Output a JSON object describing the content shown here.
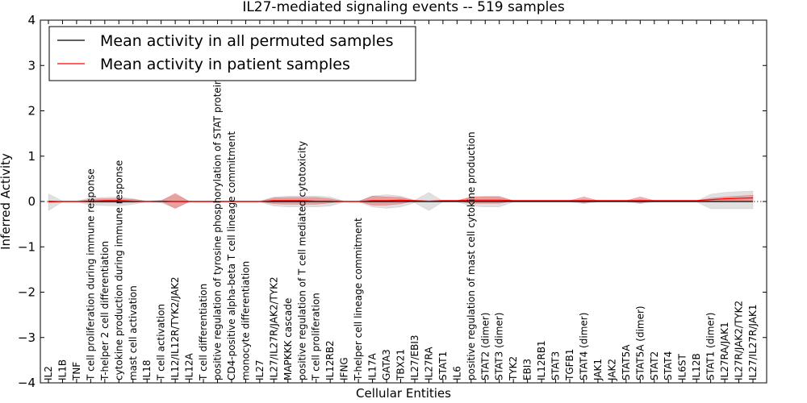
{
  "chart_data": {
    "type": "line",
    "title": "IL27-mediated signaling events -- 519 samples",
    "xlabel": "Cellular Entities",
    "ylabel": "Inferred Activity",
    "ylim": [
      -4,
      4
    ],
    "yticks": [
      {
        "value": 4,
        "label": "4"
      },
      {
        "value": 3,
        "label": "3"
      },
      {
        "value": 2,
        "label": "2"
      },
      {
        "value": 1,
        "label": "1"
      },
      {
        "value": 0,
        "label": "0"
      },
      {
        "value": -1,
        "label": "−1"
      },
      {
        "value": -2,
        "label": "−2"
      },
      {
        "value": -3,
        "label": "−3"
      },
      {
        "value": -4,
        "label": "−4"
      }
    ],
    "categories": [
      "IL2",
      "IL1B",
      "TNF",
      "T cell proliferation during immune response",
      "T-helper 2 cell differentiation",
      "cytokine production during immune response",
      "mast cell activation",
      "IL18",
      "T cell activation",
      "IL12/IL12R/TYK2/JAK2",
      "IL12A",
      "T cell differentiation",
      "positive regulation of tyrosine phosphorylation of STAT protein",
      "CD4-positive alpha-beta T cell lineage commitment",
      "monocyte differentiation",
      "IL27",
      "IL27/IL27R/JAK2/TYK2",
      "MAPKKK cascade",
      "positive regulation of T cell mediated cytotoxicity",
      "T cell proliferation",
      "IL12RB2",
      "IFNG",
      "T-helper cell lineage commitment",
      "IL17A",
      "GATA3",
      "TBX21",
      "IL27/EBI3",
      "IL27RA",
      "STAT1",
      "IL6",
      "positive regulation of mast cell cytokine production",
      "STAT2 (dimer)",
      "STAT3 (dimer)",
      "TYK2",
      "EBI3",
      "IL12RB1",
      "STAT3",
      "TGFB1",
      "STAT4 (dimer)",
      "JAK1",
      "JAK2",
      "STAT5A",
      "STAT5A (dimer)",
      "STAT2",
      "STAT4",
      "IL6ST",
      "IL12B",
      "STAT1 (dimer)",
      "IL27RA/JAK1",
      "IL27R/JAK2/TYK2",
      "IL27/IL27R/JAK1"
    ],
    "series": [
      {
        "name": "Mean activity in all permuted samples",
        "color": "#000000",
        "values": [
          0,
          0,
          0,
          0,
          0,
          0,
          0,
          0,
          0,
          0,
          0,
          0,
          0,
          0,
          0,
          0,
          0,
          0,
          0,
          0,
          0,
          0,
          0,
          0,
          0,
          0,
          0,
          0,
          0,
          0,
          0,
          0,
          0,
          0,
          0,
          0,
          0,
          0,
          0,
          0,
          0,
          0,
          0,
          0,
          0,
          0,
          0,
          0,
          0,
          0,
          0
        ],
        "band_lower": [
          -0.2,
          -0.01,
          -0.01,
          -0.08,
          -0.09,
          -0.1,
          -0.06,
          -0.01,
          -0.03,
          -0.15,
          -0.01,
          -0.01,
          -0.01,
          -0.01,
          -0.01,
          -0.01,
          -0.1,
          -0.12,
          -0.12,
          -0.12,
          -0.1,
          -0.01,
          -0.01,
          -0.12,
          -0.15,
          -0.12,
          -0.03,
          -0.2,
          -0.01,
          -0.01,
          -0.1,
          -0.12,
          -0.12,
          -0.01,
          -0.01,
          -0.01,
          -0.01,
          -0.01,
          -0.05,
          -0.01,
          -0.01,
          -0.01,
          -0.05,
          -0.01,
          -0.01,
          -0.01,
          -0.01,
          -0.16,
          -0.16,
          -0.16,
          -0.16
        ],
        "band_upper": [
          0.17,
          0.01,
          0.01,
          0.08,
          0.09,
          0.1,
          0.06,
          0.01,
          0.03,
          0.15,
          0.01,
          0.01,
          0.01,
          0.01,
          0.01,
          0.01,
          0.1,
          0.12,
          0.12,
          0.12,
          0.1,
          0.01,
          0.01,
          0.12,
          0.15,
          0.12,
          0.03,
          0.2,
          0.01,
          0.01,
          0.1,
          0.12,
          0.12,
          0.01,
          0.01,
          0.01,
          0.01,
          0.01,
          0.05,
          0.01,
          0.01,
          0.01,
          0.05,
          0.01,
          0.01,
          0.01,
          0.01,
          0.16,
          0.2,
          0.22,
          0.23
        ]
      },
      {
        "name": "Mean activity in patient samples",
        "color": "#ff0000",
        "values": [
          -0.01,
          0,
          0,
          0.01,
          0.02,
          0.02,
          0.01,
          0,
          0.01,
          0,
          0,
          0,
          0,
          0,
          0,
          0,
          0.02,
          0.02,
          0.02,
          0.01,
          0.01,
          0,
          0,
          0.02,
          0.02,
          0.03,
          0.02,
          0.01,
          0.02,
          0.02,
          0.03,
          0.03,
          0.03,
          0.02,
          0.02,
          0.02,
          0.02,
          0.02,
          0.02,
          0.02,
          0.02,
          0.02,
          0.02,
          0.02,
          0.02,
          0.02,
          0.02,
          0.04,
          0.06,
          0.07,
          0.08
        ],
        "band_lower": [
          -0.01,
          0,
          0,
          -0.02,
          -0.02,
          -0.02,
          -0.02,
          0,
          0.01,
          -0.15,
          0,
          0,
          0,
          0,
          0,
          0,
          -0.05,
          -0.06,
          -0.06,
          -0.06,
          -0.03,
          0,
          0,
          -0.08,
          -0.08,
          -0.05,
          0.02,
          0.01,
          0.02,
          0.02,
          -0.04,
          -0.04,
          -0.04,
          0.02,
          0.02,
          0.02,
          0.02,
          0.02,
          -0.03,
          0.02,
          0.02,
          0.02,
          -0.03,
          0.02,
          0.02,
          0.02,
          0.02,
          0.01,
          0.02,
          0.02,
          0.02
        ],
        "band_upper": [
          -0.01,
          0,
          0,
          0.05,
          0.06,
          0.06,
          0.05,
          0,
          0.01,
          0.18,
          0,
          0,
          0,
          0,
          0,
          0,
          0.08,
          0.09,
          0.09,
          0.09,
          0.06,
          0,
          0,
          0.12,
          0.1,
          0.09,
          0.02,
          0.01,
          0.02,
          0.02,
          0.1,
          0.1,
          0.1,
          0.02,
          0.02,
          0.02,
          0.02,
          0.02,
          0.1,
          0.02,
          0.02,
          0.02,
          0.1,
          0.02,
          0.02,
          0.02,
          0.02,
          0.07,
          0.1,
          0.12,
          0.14
        ]
      }
    ],
    "zero_line": {
      "style": "dotted",
      "value": 0
    },
    "legend": {
      "position": "top-left"
    }
  }
}
